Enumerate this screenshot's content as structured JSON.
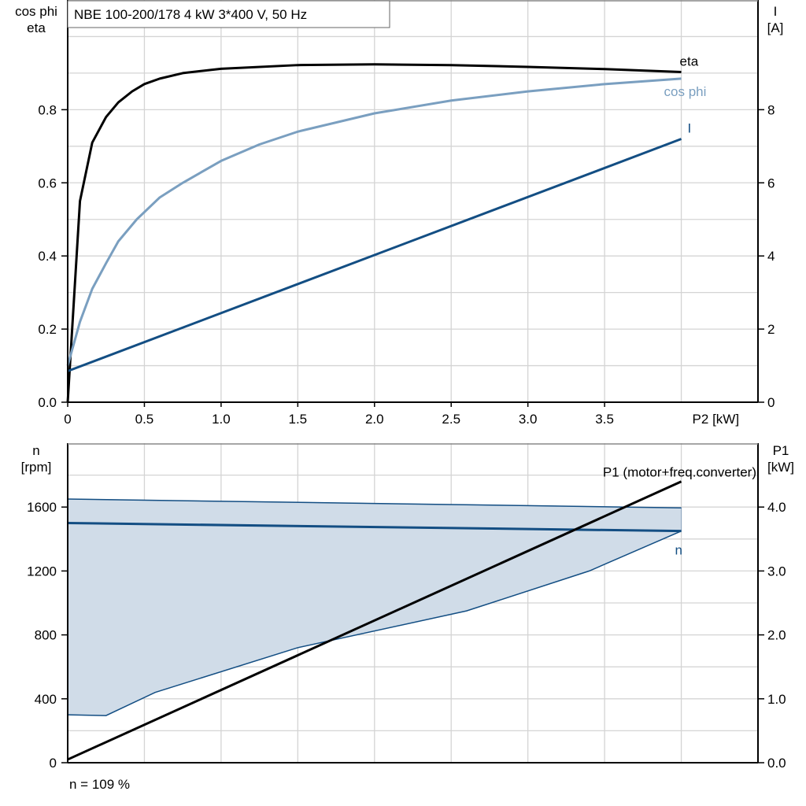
{
  "chart_data": [
    {
      "type": "line",
      "title": "NBE 100-200/178   4 kW   3*400 V, 50 Hz",
      "xlabel": "P2 [kW]",
      "ylabel_left": [
        "cos phi",
        "eta"
      ],
      "ylabel_right": [
        "I",
        "[A]"
      ],
      "xlim": [
        0,
        4.5
      ],
      "ylim_left": [
        0,
        1.1
      ],
      "ylim_right": [
        0,
        11
      ],
      "xticks": [
        "0",
        "0.5",
        "1.0",
        "1.5",
        "2.0",
        "2.5",
        "3.0",
        "3.5"
      ],
      "xtick_values": [
        0,
        0.5,
        1.0,
        1.5,
        2.0,
        2.5,
        3.0,
        3.5
      ],
      "yticks_left": [
        "0.0",
        "0.2",
        "0.4",
        "0.6",
        "0.8"
      ],
      "ytick_values_left": [
        0,
        0.2,
        0.4,
        0.6,
        0.8
      ],
      "yticks_right": [
        "0",
        "2",
        "4",
        "6",
        "8"
      ],
      "ytick_values_right": [
        0,
        2,
        4,
        6,
        8
      ],
      "grid": true,
      "series": [
        {
          "name": "eta",
          "axis": "left",
          "color": "#000000",
          "x": [
            0,
            0.08,
            0.16,
            0.25,
            0.33,
            0.42,
            0.5,
            0.6,
            0.75,
            1.0,
            1.5,
            2.0,
            2.5,
            3.0,
            3.5,
            4.0
          ],
          "y": [
            0,
            0.55,
            0.71,
            0.78,
            0.82,
            0.85,
            0.87,
            0.885,
            0.9,
            0.912,
            0.922,
            0.924,
            0.922,
            0.917,
            0.911,
            0.903
          ]
        },
        {
          "name": "cos phi",
          "axis": "left",
          "color": "#7a9fc0",
          "x": [
            0,
            0.08,
            0.16,
            0.25,
            0.33,
            0.45,
            0.6,
            0.75,
            1.0,
            1.25,
            1.5,
            2.0,
            2.5,
            3.0,
            3.5,
            4.0
          ],
          "y": [
            0.1,
            0.22,
            0.31,
            0.38,
            0.44,
            0.5,
            0.56,
            0.6,
            0.66,
            0.705,
            0.74,
            0.79,
            0.825,
            0.85,
            0.87,
            0.885
          ]
        },
        {
          "name": "I",
          "axis": "right",
          "color": "#134e83",
          "x": [
            0,
            4.0
          ],
          "y": [
            0.85,
            7.2
          ]
        }
      ]
    },
    {
      "type": "line",
      "xlim": [
        0,
        4.5
      ],
      "ylabel_left": [
        "n",
        "[rpm]"
      ],
      "ylabel_right": [
        "P1",
        "[kW]"
      ],
      "ylim_left": [
        0,
        2000
      ],
      "ylim_right": [
        0,
        5.0
      ],
      "yticks_left": [
        "0",
        "400",
        "800",
        "1200",
        "1600"
      ],
      "ytick_values_left": [
        0,
        400,
        800,
        1200,
        1600
      ],
      "yticks_right": [
        "0.0",
        "1.0",
        "2.0",
        "3.0",
        "4.0"
      ],
      "ytick_values_right": [
        0,
        1,
        2,
        3,
        4
      ],
      "grid": true,
      "annotation": "n = 109 %",
      "area": {
        "color": "#d0dce8",
        "upper": {
          "x": [
            0,
            4.0
          ],
          "y": [
            1650,
            1595
          ]
        },
        "lower": {
          "x": [
            0,
            0.25,
            0.57,
            1.5,
            2.6,
            3.4,
            4.0
          ],
          "y": [
            300,
            295,
            440,
            720,
            950,
            1200,
            1450
          ]
        }
      },
      "series": [
        {
          "name": "n",
          "axis": "left",
          "color": "#134e83",
          "x": [
            0,
            4.0
          ],
          "y": [
            1500,
            1450
          ]
        },
        {
          "name": "P1 (motor+freq.converter)",
          "axis": "right",
          "color": "#000000",
          "x": [
            0,
            4.0
          ],
          "y": [
            0.05,
            4.4
          ]
        }
      ]
    }
  ]
}
